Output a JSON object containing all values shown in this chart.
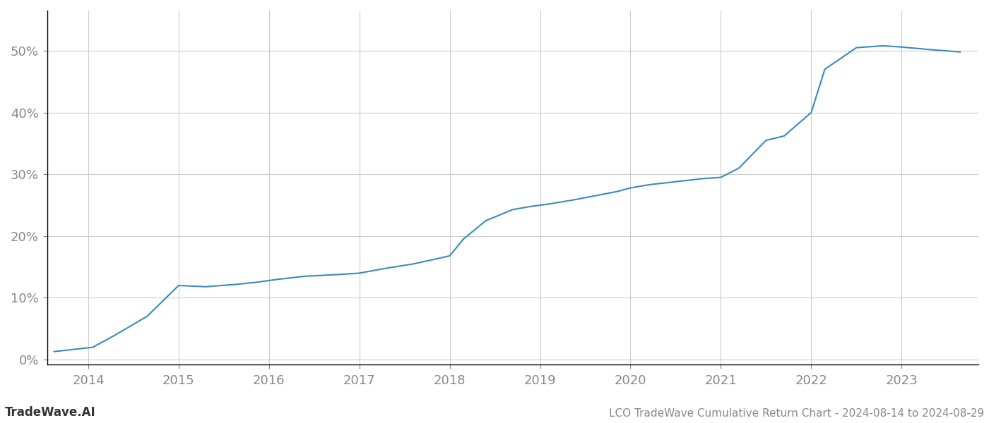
{
  "title": "LCO TradeWave Cumulative Return Chart - 2024-08-14 to 2024-08-29",
  "watermark": "TradeWave.AI",
  "line_color": "#3a8abf",
  "line_width": 1.5,
  "background_color": "#ffffff",
  "grid_color": "#cccccc",
  "x_years": [
    2014,
    2015,
    2016,
    2017,
    2018,
    2019,
    2020,
    2021,
    2022,
    2023
  ],
  "x_data": [
    2013.62,
    2014.05,
    2014.3,
    2014.65,
    2015.0,
    2015.3,
    2015.65,
    2015.85,
    2016.1,
    2016.4,
    2016.8,
    2017.0,
    2017.3,
    2017.6,
    2017.85,
    2018.0,
    2018.15,
    2018.4,
    2018.7,
    2018.9,
    2019.1,
    2019.35,
    2019.6,
    2019.85,
    2020.0,
    2020.2,
    2020.5,
    2020.8,
    2021.0,
    2021.2,
    2021.5,
    2021.7,
    2022.0,
    2022.15,
    2022.5,
    2022.8,
    2023.0,
    2023.3,
    2023.65
  ],
  "y_data": [
    0.013,
    0.02,
    0.04,
    0.07,
    0.12,
    0.118,
    0.122,
    0.125,
    0.13,
    0.135,
    0.138,
    0.14,
    0.148,
    0.155,
    0.163,
    0.168,
    0.195,
    0.225,
    0.243,
    0.248,
    0.252,
    0.258,
    0.265,
    0.272,
    0.278,
    0.283,
    0.288,
    0.293,
    0.295,
    0.31,
    0.355,
    0.362,
    0.4,
    0.47,
    0.505,
    0.508,
    0.506,
    0.502,
    0.498
  ],
  "ylim": [
    -0.008,
    0.565
  ],
  "xlim": [
    2013.55,
    2023.85
  ],
  "yticks": [
    0.0,
    0.1,
    0.2,
    0.3,
    0.4,
    0.5
  ],
  "tick_color": "#888888",
  "spine_color": "#000000",
  "tick_fontsize": 13,
  "title_fontsize": 11,
  "watermark_fontsize": 12
}
